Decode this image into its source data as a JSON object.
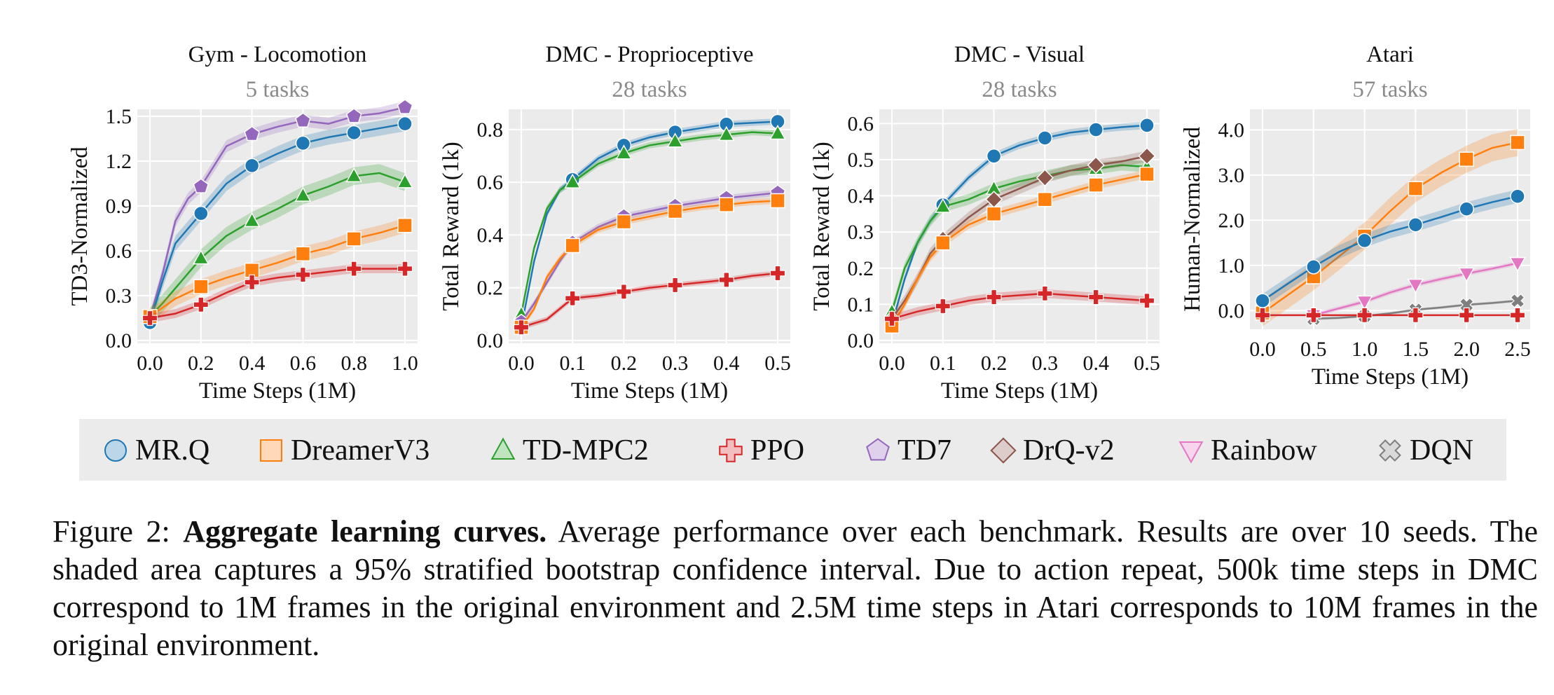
{
  "colors": {
    "MR.Q": "#1f77b4",
    "DreamerV3": "#ff7f0e",
    "TD-MPC2": "#2ca02c",
    "PPO": "#d62728",
    "TD7": "#9467bd",
    "DrQ-v2": "#8c564b",
    "Rainbow": "#e377c2",
    "DQN": "#7f7f7f",
    "panel_bg": "#ebebeb",
    "grid": "#ffffff",
    "legend_bg": "#ebebeb",
    "subtitle": "#8a8a8a"
  },
  "legend": [
    {
      "name": "MR.Q",
      "marker": "circle"
    },
    {
      "name": "DreamerV3",
      "marker": "square"
    },
    {
      "name": "TD-MPC2",
      "marker": "triangle-up"
    },
    {
      "name": "PPO",
      "marker": "plus"
    },
    {
      "name": "TD7",
      "marker": "pentagon"
    },
    {
      "name": "DrQ-v2",
      "marker": "diamond"
    },
    {
      "name": "Rainbow",
      "marker": "triangle-down"
    },
    {
      "name": "DQN",
      "marker": "x"
    }
  ],
  "chart_data": [
    {
      "type": "line",
      "title": "Gym - Locomotion",
      "subtitle": "5 tasks",
      "xlabel": "Time Steps (1M)",
      "ylabel": "TD3-Normalized",
      "xlim": [
        0,
        1.0
      ],
      "ylim": [
        0,
        1.5
      ],
      "xticks": [
        "0.0",
        "0.2",
        "0.4",
        "0.6",
        "0.8",
        "1.0"
      ],
      "yticks": [
        "0.0",
        "0.3",
        "0.6",
        "0.9",
        "1.2",
        "1.5"
      ],
      "grid": true,
      "series": [
        {
          "name": "TD7",
          "x": [
            0,
            0.05,
            0.1,
            0.15,
            0.2,
            0.3,
            0.4,
            0.5,
            0.6,
            0.7,
            0.8,
            0.9,
            1.0
          ],
          "y": [
            0.15,
            0.45,
            0.8,
            0.95,
            1.03,
            1.3,
            1.38,
            1.43,
            1.47,
            1.45,
            1.5,
            1.52,
            1.56
          ],
          "markers": [
            1,
            0,
            0,
            0,
            1,
            0,
            1,
            0,
            1,
            0,
            1,
            0,
            1
          ],
          "band": 0.04
        },
        {
          "name": "MR.Q",
          "x": [
            0,
            0.05,
            0.1,
            0.15,
            0.2,
            0.3,
            0.4,
            0.5,
            0.6,
            0.7,
            0.8,
            0.9,
            1.0
          ],
          "y": [
            0.12,
            0.4,
            0.65,
            0.75,
            0.85,
            1.05,
            1.17,
            1.25,
            1.32,
            1.36,
            1.39,
            1.42,
            1.45
          ],
          "markers": [
            1,
            0,
            0,
            0,
            1,
            0,
            1,
            0,
            1,
            0,
            1,
            0,
            1
          ],
          "band": 0.05
        },
        {
          "name": "TD-MPC2",
          "x": [
            0,
            0.05,
            0.1,
            0.15,
            0.2,
            0.3,
            0.4,
            0.5,
            0.6,
            0.7,
            0.8,
            0.9,
            1.0
          ],
          "y": [
            0.16,
            0.25,
            0.35,
            0.45,
            0.55,
            0.7,
            0.8,
            0.88,
            0.97,
            1.03,
            1.1,
            1.12,
            1.06
          ],
          "markers": [
            1,
            0,
            0,
            0,
            1,
            0,
            1,
            0,
            1,
            0,
            1,
            0,
            1
          ],
          "band": 0.06
        },
        {
          "name": "DreamerV3",
          "x": [
            0,
            0.1,
            0.2,
            0.3,
            0.4,
            0.5,
            0.6,
            0.7,
            0.8,
            0.9,
            1.0
          ],
          "y": [
            0.16,
            0.28,
            0.36,
            0.42,
            0.47,
            0.52,
            0.58,
            0.62,
            0.68,
            0.72,
            0.77
          ],
          "markers": [
            1,
            0,
            1,
            0,
            1,
            0,
            1,
            0,
            1,
            0,
            1
          ],
          "band": 0.05
        },
        {
          "name": "PPO",
          "x": [
            0,
            0.1,
            0.2,
            0.3,
            0.4,
            0.5,
            0.6,
            0.7,
            0.8,
            0.9,
            1.0
          ],
          "y": [
            0.15,
            0.18,
            0.24,
            0.32,
            0.39,
            0.42,
            0.44,
            0.46,
            0.48,
            0.48,
            0.48
          ],
          "markers": [
            1,
            0,
            1,
            0,
            1,
            0,
            1,
            0,
            1,
            0,
            1
          ],
          "band": 0.03
        }
      ]
    },
    {
      "type": "line",
      "title": "DMC - Proprioceptive",
      "subtitle": "28 tasks",
      "xlabel": "Time Steps (1M)",
      "ylabel": "Total Reward (1k)",
      "xlim": [
        0,
        0.5
      ],
      "ylim": [
        0,
        0.85
      ],
      "xticks": [
        "0.0",
        "0.1",
        "0.2",
        "0.3",
        "0.4",
        "0.5"
      ],
      "yticks": [
        "0.0",
        "0.2",
        "0.4",
        "0.6",
        "0.8"
      ],
      "grid": true,
      "series": [
        {
          "name": "MR.Q",
          "x": [
            0,
            0.025,
            0.05,
            0.075,
            0.1,
            0.15,
            0.2,
            0.25,
            0.3,
            0.35,
            0.4,
            0.45,
            0.5
          ],
          "y": [
            0.05,
            0.3,
            0.48,
            0.57,
            0.61,
            0.69,
            0.74,
            0.77,
            0.79,
            0.805,
            0.82,
            0.825,
            0.83
          ],
          "markers": [
            1,
            0,
            0,
            0,
            1,
            0,
            1,
            0,
            1,
            0,
            1,
            0,
            1
          ],
          "band": 0.012
        },
        {
          "name": "TD-MPC2",
          "x": [
            0,
            0.025,
            0.05,
            0.075,
            0.1,
            0.15,
            0.2,
            0.25,
            0.3,
            0.35,
            0.4,
            0.45,
            0.5
          ],
          "y": [
            0.1,
            0.35,
            0.5,
            0.57,
            0.6,
            0.67,
            0.71,
            0.74,
            0.755,
            0.77,
            0.78,
            0.79,
            0.785
          ],
          "markers": [
            1,
            0,
            0,
            0,
            1,
            0,
            1,
            0,
            1,
            0,
            1,
            0,
            1
          ],
          "band": 0.012
        },
        {
          "name": "TD7",
          "x": [
            0,
            0.025,
            0.05,
            0.075,
            0.1,
            0.15,
            0.2,
            0.25,
            0.3,
            0.35,
            0.4,
            0.45,
            0.5
          ],
          "y": [
            0.07,
            0.14,
            0.22,
            0.3,
            0.37,
            0.43,
            0.47,
            0.49,
            0.51,
            0.525,
            0.54,
            0.55,
            0.56
          ],
          "markers": [
            1,
            0,
            0,
            0,
            1,
            0,
            1,
            0,
            1,
            0,
            1,
            0,
            1
          ],
          "band": 0.012
        },
        {
          "name": "DreamerV3",
          "x": [
            0,
            0.025,
            0.05,
            0.075,
            0.1,
            0.15,
            0.2,
            0.25,
            0.3,
            0.35,
            0.4,
            0.45,
            0.5
          ],
          "y": [
            0.05,
            0.12,
            0.24,
            0.31,
            0.36,
            0.42,
            0.45,
            0.47,
            0.49,
            0.505,
            0.515,
            0.525,
            0.53
          ],
          "markers": [
            1,
            0,
            0,
            0,
            1,
            0,
            1,
            0,
            1,
            0,
            1,
            0,
            1
          ],
          "band": 0.012
        },
        {
          "name": "PPO",
          "x": [
            0,
            0.05,
            0.1,
            0.15,
            0.2,
            0.25,
            0.3,
            0.35,
            0.4,
            0.45,
            0.5
          ],
          "y": [
            0.05,
            0.08,
            0.16,
            0.17,
            0.185,
            0.2,
            0.21,
            0.22,
            0.23,
            0.245,
            0.255
          ],
          "markers": [
            1,
            0,
            1,
            0,
            1,
            0,
            1,
            0,
            1,
            0,
            1
          ],
          "band": 0.01
        }
      ]
    },
    {
      "type": "line",
      "title": "DMC - Visual",
      "subtitle": "28 tasks",
      "xlabel": "Time Steps (1M)",
      "ylabel": "Total Reward (1k)",
      "xlim": [
        0,
        0.5
      ],
      "ylim": [
        0,
        0.62
      ],
      "xticks": [
        "0.0",
        "0.1",
        "0.2",
        "0.3",
        "0.4",
        "0.5"
      ],
      "yticks": [
        "0.0",
        "0.1",
        "0.2",
        "0.3",
        "0.4",
        "0.5",
        "0.6"
      ],
      "grid": true,
      "series": [
        {
          "name": "MR.Q",
          "x": [
            0,
            0.025,
            0.05,
            0.075,
            0.1,
            0.15,
            0.2,
            0.25,
            0.3,
            0.35,
            0.4,
            0.45,
            0.5
          ],
          "y": [
            0.045,
            0.17,
            0.27,
            0.33,
            0.375,
            0.45,
            0.51,
            0.54,
            0.56,
            0.575,
            0.583,
            0.59,
            0.595
          ],
          "markers": [
            1,
            0,
            0,
            0,
            1,
            0,
            1,
            0,
            1,
            0,
            1,
            0,
            1
          ],
          "band": 0.01
        },
        {
          "name": "TD-MPC2",
          "x": [
            0,
            0.025,
            0.05,
            0.075,
            0.1,
            0.15,
            0.2,
            0.25,
            0.3,
            0.35,
            0.4,
            0.45,
            0.5
          ],
          "y": [
            0.08,
            0.2,
            0.27,
            0.33,
            0.37,
            0.39,
            0.42,
            0.44,
            0.455,
            0.47,
            0.475,
            0.485,
            0.48
          ],
          "markers": [
            1,
            0,
            0,
            0,
            1,
            0,
            1,
            0,
            1,
            0,
            1,
            0,
            1
          ],
          "band": 0.015
        },
        {
          "name": "DrQ-v2",
          "x": [
            0,
            0.025,
            0.05,
            0.075,
            0.1,
            0.15,
            0.2,
            0.25,
            0.3,
            0.35,
            0.4,
            0.45,
            0.5
          ],
          "y": [
            0.06,
            0.11,
            0.17,
            0.24,
            0.28,
            0.34,
            0.39,
            0.42,
            0.45,
            0.47,
            0.485,
            0.495,
            0.51
          ],
          "markers": [
            1,
            0,
            0,
            0,
            1,
            0,
            1,
            0,
            1,
            0,
            1,
            0,
            1
          ],
          "band": 0.015
        },
        {
          "name": "DreamerV3",
          "x": [
            0,
            0.025,
            0.05,
            0.075,
            0.1,
            0.15,
            0.2,
            0.25,
            0.3,
            0.35,
            0.4,
            0.45,
            0.5
          ],
          "y": [
            0.04,
            0.1,
            0.17,
            0.23,
            0.27,
            0.32,
            0.35,
            0.37,
            0.39,
            0.41,
            0.43,
            0.445,
            0.46
          ],
          "markers": [
            1,
            0,
            0,
            0,
            1,
            0,
            1,
            0,
            1,
            0,
            1,
            0,
            1
          ],
          "band": 0.012
        },
        {
          "name": "PPO",
          "x": [
            0,
            0.05,
            0.1,
            0.15,
            0.2,
            0.25,
            0.3,
            0.35,
            0.4,
            0.45,
            0.5
          ],
          "y": [
            0.06,
            0.08,
            0.095,
            0.11,
            0.12,
            0.125,
            0.13,
            0.125,
            0.12,
            0.115,
            0.11
          ],
          "markers": [
            1,
            0,
            1,
            0,
            1,
            0,
            1,
            0,
            1,
            0,
            1
          ],
          "band": 0.012
        }
      ]
    },
    {
      "type": "line",
      "title": "Atari",
      "subtitle": "57 tasks",
      "xlabel": "Time Steps (1M)",
      "ylabel": "Human-Normalized",
      "xlim": [
        0,
        2.5
      ],
      "ylim": [
        -0.35,
        4.3
      ],
      "xticks": [
        "0.0",
        "0.5",
        "1.0",
        "1.5",
        "2.0",
        "2.5"
      ],
      "yticks": [
        "0.0",
        "1.0",
        "2.0",
        "3.0",
        "4.0"
      ],
      "grid": true,
      "series": [
        {
          "name": "DreamerV3",
          "x": [
            0,
            0.25,
            0.5,
            0.75,
            1.0,
            1.25,
            1.5,
            1.75,
            2.0,
            2.25,
            2.5
          ],
          "y": [
            -0.05,
            0.35,
            0.75,
            1.2,
            1.65,
            2.2,
            2.7,
            3.05,
            3.35,
            3.6,
            3.72
          ],
          "markers": [
            1,
            0,
            1,
            0,
            1,
            0,
            1,
            0,
            1,
            0,
            1
          ],
          "band": 0.3
        },
        {
          "name": "MR.Q",
          "x": [
            0,
            0.25,
            0.5,
            0.75,
            1.0,
            1.25,
            1.5,
            1.75,
            2.0,
            2.25,
            2.5
          ],
          "y": [
            0.22,
            0.6,
            0.97,
            1.3,
            1.55,
            1.75,
            1.9,
            2.07,
            2.25,
            2.4,
            2.53
          ],
          "markers": [
            1,
            0,
            1,
            0,
            1,
            0,
            1,
            0,
            1,
            0,
            1
          ],
          "band": 0.15
        },
        {
          "name": "Rainbow",
          "x": [
            0.5,
            0.75,
            1.0,
            1.25,
            1.5,
            1.75,
            2.0,
            2.25,
            2.5
          ],
          "y": [
            -0.1,
            0.05,
            0.2,
            0.4,
            0.57,
            0.7,
            0.82,
            0.93,
            1.05
          ],
          "markers": [
            1,
            0,
            1,
            0,
            1,
            0,
            1,
            0,
            1
          ],
          "band": 0.05
        },
        {
          "name": "DQN",
          "x": [
            0.5,
            0.75,
            1.0,
            1.25,
            1.5,
            1.75,
            2.0,
            2.25,
            2.5
          ],
          "y": [
            -0.18,
            -0.16,
            -0.12,
            -0.06,
            0.02,
            0.07,
            0.13,
            0.17,
            0.22
          ],
          "markers": [
            1,
            0,
            1,
            0,
            1,
            0,
            1,
            0,
            1
          ],
          "band": 0.03
        },
        {
          "name": "PPO",
          "x": [
            0,
            0.5,
            1.0,
            1.5,
            2.0,
            2.5
          ],
          "y": [
            -0.1,
            -0.1,
            -0.1,
            -0.1,
            -0.1,
            -0.1
          ],
          "markers": [
            1,
            1,
            1,
            1,
            1,
            1
          ],
          "band": 0.02
        }
      ]
    }
  ],
  "caption": {
    "label": "Figure 2: ",
    "bold": "Aggregate learning curves.",
    "text": " Average performance over each benchmark. Results are over 10 seeds. The shaded area captures a 95% stratified bootstrap confidence interval. Due to action repeat, 500k time steps in DMC correspond to 1M frames in the original environment and 2.5M time steps in Atari corresponds to 10M frames in the original environment."
  }
}
